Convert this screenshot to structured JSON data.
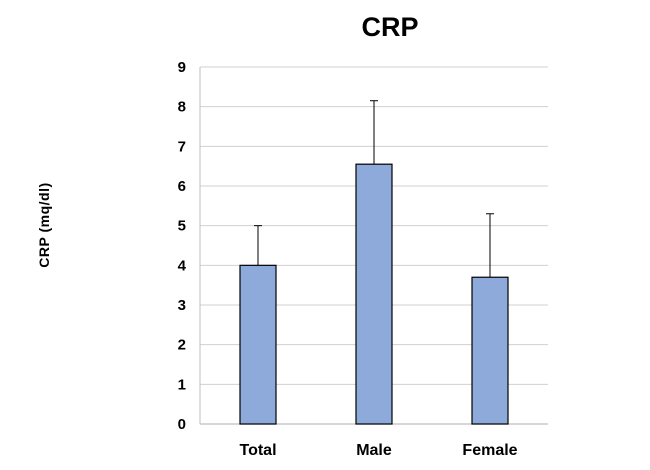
{
  "chart_data": {
    "type": "bar",
    "title": "CRP",
    "xlabel": "",
    "ylabel": "CRP (mq/dl)",
    "categories": [
      "Total",
      "Male",
      "Female"
    ],
    "values": [
      4.0,
      6.55,
      3.7
    ],
    "error_upper": [
      5.0,
      8.15,
      5.3
    ],
    "ylim": [
      0,
      9
    ],
    "yticks": [
      "0",
      "1",
      "2",
      "3",
      "4",
      "5",
      "6",
      "7",
      "8",
      "9"
    ],
    "grid": true,
    "bar_color": "#8eaadb",
    "bar_edge_color": "#000000",
    "grid_color": "#d0d0d0"
  }
}
